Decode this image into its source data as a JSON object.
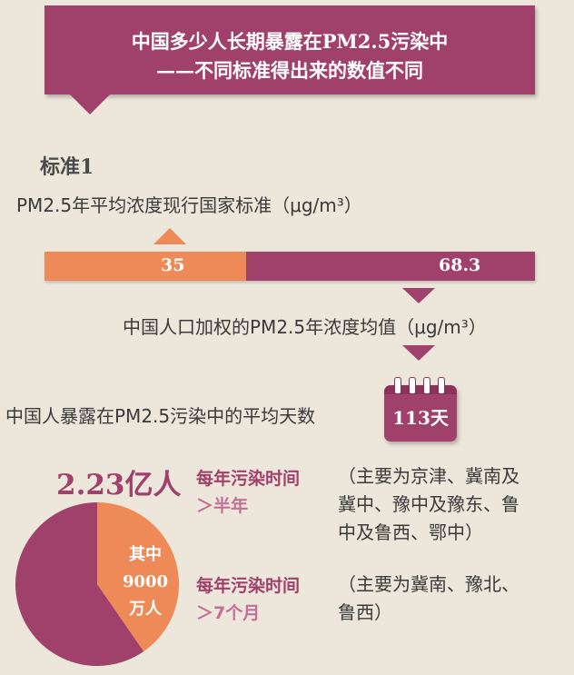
{
  "header": {
    "line1": "中国多少人长期暴露在PM2.5污染中",
    "line2": "——不同标准得出来的数值不同"
  },
  "standard": {
    "title": "标准1",
    "description": "PM2.5年平均浓度现行国家标准（μg/m³）",
    "national_value": "35",
    "average_value": "68.3",
    "average_label": "中国人口加权的PM2.5年浓度均值（μg/m³）"
  },
  "exposure": {
    "label": "中国人暴露在PM2.5污染中的平均天数",
    "days": "113天"
  },
  "population": {
    "total": "2.23亿人",
    "sub_line1": "其中",
    "sub_line2": "9000",
    "sub_line3": "万人",
    "share_fraction": 0.4036
  },
  "conditions": [
    {
      "title_line1": "每年污染时间",
      "title_line2": "＞半年",
      "note_line1": "（主要为京津、冀南及",
      "note_line2": "冀中、豫中及豫东、鲁",
      "note_line3": "中及鲁西、鄂中）"
    },
    {
      "title_line1": "每年污染时间",
      "title_line2": "＞7个月",
      "note_line1": "（主要为冀南、豫北、",
      "note_line2": "鲁西）"
    }
  ],
  "colors": {
    "background": "#ede6db",
    "primary": "#a0416b",
    "accent": "#ee8a58",
    "text": "#3a3a3a"
  }
}
